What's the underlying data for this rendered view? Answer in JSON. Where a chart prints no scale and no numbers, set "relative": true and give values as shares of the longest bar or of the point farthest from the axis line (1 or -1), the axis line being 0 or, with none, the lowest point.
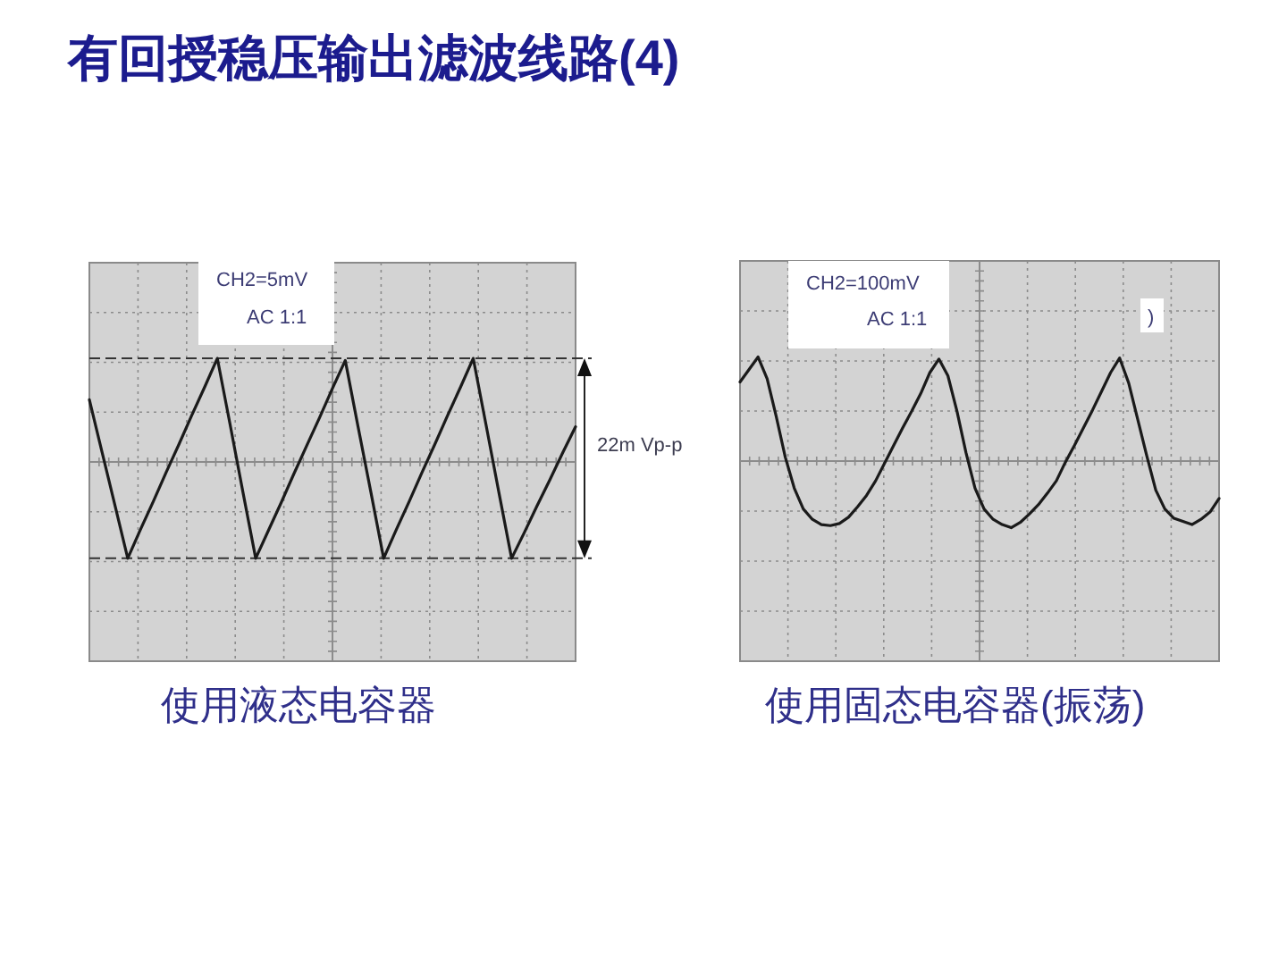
{
  "chart_data": [
    {
      "type": "line",
      "title": "有回授稳压输出滤波线路(4)",
      "xlabel": "使用液态电容器",
      "relative": true,
      "grid": true,
      "categories": [
        null,
        null,
        null,
        null,
        null,
        null,
        null,
        null,
        null,
        null,
        null,
        null,
        null,
        null,
        null,
        null,
        null,
        null,
        null,
        null,
        null,
        null,
        null,
        null,
        null,
        null,
        null,
        null,
        null,
        null,
        null,
        null,
        null,
        null,
        null,
        null,
        null,
        null,
        null
      ],
      "series": [
        {
          "color": "#1a1a1a",
          "values": [
            0.6,
            0.09,
            -0.42,
            -0.93,
            -0.65,
            -0.38,
            -0.1,
            0.17,
            0.45,
            0.72,
            1.0,
            0.36,
            -0.29,
            -0.93,
            -0.66,
            -0.39,
            -0.11,
            0.16,
            0.43,
            0.71,
            0.98,
            0.34,
            -0.29,
            -0.93,
            -0.65,
            -0.38,
            -0.1,
            0.17,
            0.45,
            0.72,
            1.0,
            0.36,
            -0.29,
            -0.93,
            -0.68,
            -0.42,
            -0.17,
            0.09,
            0.34
          ]
        }
      ],
      "ref_lines": [
        {
          "axis": "y",
          "value": 1.0,
          "line_style": "dashed",
          "color": "#333333"
        },
        {
          "axis": "y",
          "value": -0.93,
          "line_style": "dashed",
          "color": "#333333"
        }
      ],
      "annotations": [
        "CH2=5mV",
        "AC 1:1",
        "22m Vp-p"
      ]
    },
    {
      "type": "line",
      "xlabel": "使用固态电容器(振荡)",
      "relative": true,
      "grid": true,
      "categories": [
        null,
        null,
        null,
        null,
        null,
        null,
        null,
        null,
        null,
        null,
        null,
        null,
        null,
        null,
        null,
        null,
        null,
        null,
        null,
        null,
        null,
        null,
        null,
        null,
        null,
        null,
        null,
        null,
        null,
        null,
        null,
        null,
        null,
        null,
        null,
        null,
        null,
        null,
        null,
        null,
        null,
        null,
        null,
        null,
        null,
        null,
        null,
        null,
        null,
        null,
        null,
        null,
        null,
        null
      ],
      "series": [
        {
          "color": "#1a1a1a",
          "values": [
            0.76,
            0.88,
            1.0,
            0.79,
            0.43,
            0.04,
            -0.26,
            -0.46,
            -0.56,
            -0.61,
            -0.62,
            -0.6,
            -0.54,
            -0.44,
            -0.33,
            -0.19,
            -0.02,
            0.15,
            0.32,
            0.48,
            0.65,
            0.85,
            0.98,
            0.82,
            0.48,
            0.08,
            -0.26,
            -0.46,
            -0.56,
            -0.61,
            -0.64,
            -0.59,
            -0.51,
            -0.42,
            -0.31,
            -0.19,
            -0.01,
            0.15,
            0.32,
            0.49,
            0.67,
            0.85,
            0.99,
            0.75,
            0.4,
            0.05,
            -0.28,
            -0.46,
            -0.55,
            -0.58,
            -0.61,
            -0.56,
            -0.49,
            -0.36
          ]
        }
      ],
      "annotations": [
        "CH2=100mV",
        "AC 1:1",
        ")"
      ]
    }
  ]
}
